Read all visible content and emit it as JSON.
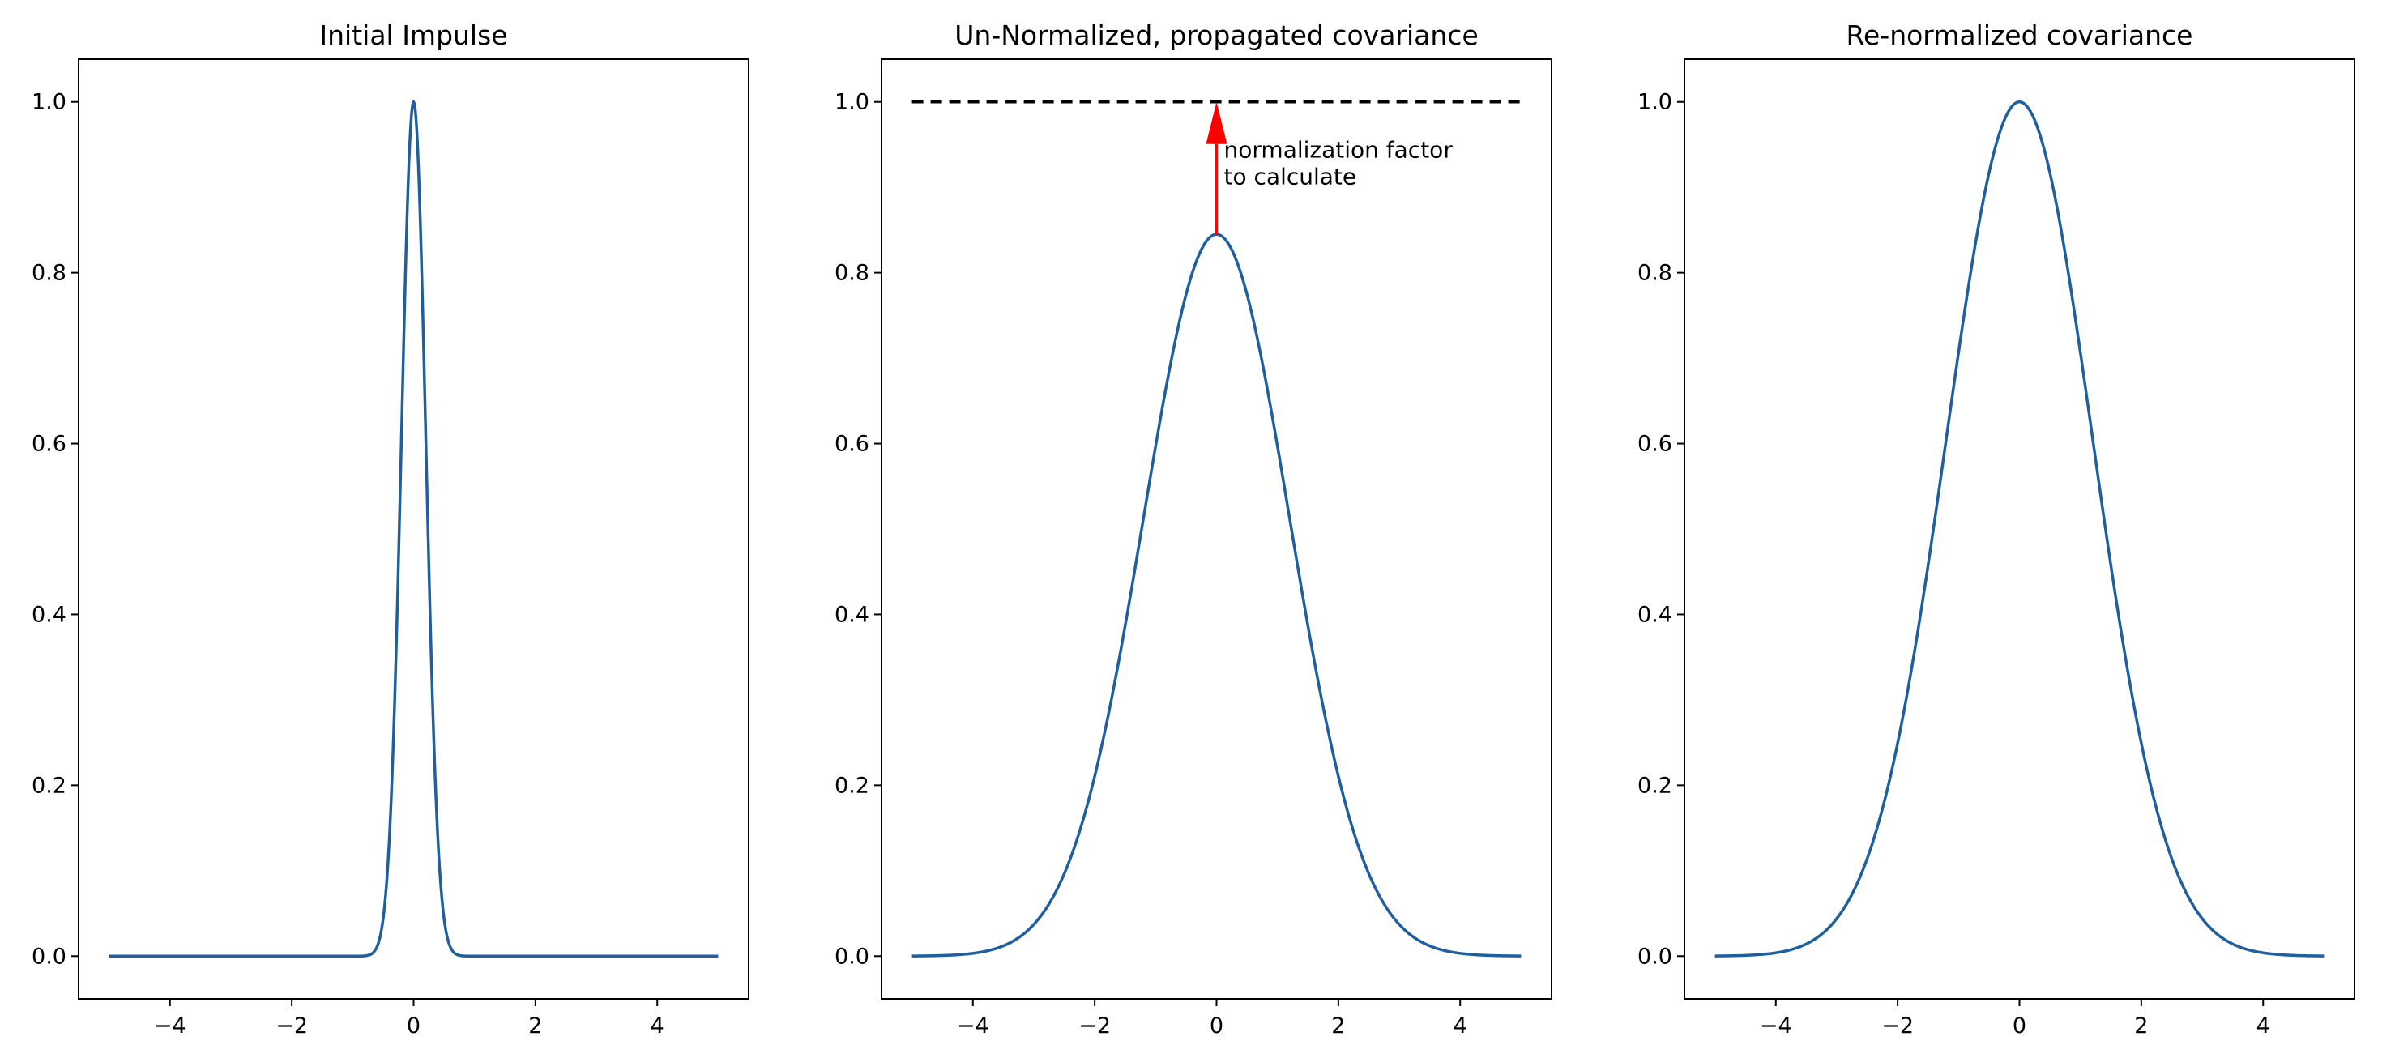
{
  "figure": {
    "description_colors": {
      "line": "#1f5fa0",
      "arrow": "#ff0000",
      "reference": "#000000",
      "background": "#ffffff"
    }
  },
  "chart_data": [
    {
      "type": "line",
      "title": "Initial Impulse",
      "xlabel": "",
      "ylabel": "",
      "xlim": [
        -5.5,
        5.5
      ],
      "ylim": [
        -0.05,
        1.05
      ],
      "xticks": [
        -4,
        -2,
        0,
        2,
        4
      ],
      "xtick_labels": [
        "−4",
        "−2",
        "0",
        "2",
        "4"
      ],
      "yticks": [
        0.0,
        0.2,
        0.4,
        0.6,
        0.8,
        1.0
      ],
      "ytick_labels": [
        "0.0",
        "0.2",
        "0.4",
        "0.6",
        "0.8",
        "1.0"
      ],
      "series": [
        {
          "name": "impulse",
          "function": "gaussian",
          "x_range": [
            -5,
            5
          ],
          "amplitude": 1.0,
          "sigma": 0.2,
          "color": "#1f5fa0"
        }
      ]
    },
    {
      "type": "line",
      "title": "Un-Normalized, propagated covariance",
      "xlabel": "",
      "ylabel": "",
      "xlim": [
        -5.5,
        5.5
      ],
      "ylim": [
        -0.05,
        1.05
      ],
      "xticks": [
        -4,
        -2,
        0,
        2,
        4
      ],
      "xtick_labels": [
        "−4",
        "−2",
        "0",
        "2",
        "4"
      ],
      "yticks": [
        0.0,
        0.2,
        0.4,
        0.6,
        0.8,
        1.0
      ],
      "ytick_labels": [
        "0.0",
        "0.2",
        "0.4",
        "0.6",
        "0.8",
        "1.0"
      ],
      "series": [
        {
          "name": "propagated",
          "function": "gaussian",
          "x_range": [
            -5,
            5
          ],
          "amplitude": 0.845,
          "sigma": 1.2,
          "color": "#1f5fa0"
        }
      ],
      "reference_line": {
        "y": 1.0,
        "x_range": [
          -5,
          5
        ],
        "style": "dashed",
        "color": "#000000"
      },
      "annotation": {
        "arrow": {
          "x": 0,
          "from_y": 0.845,
          "to_y": 1.0,
          "color": "#ff0000"
        },
        "text_lines": [
          "normalization factor",
          "to calculate"
        ],
        "text_x": 0.12,
        "text_y": 0.935
      }
    },
    {
      "type": "line",
      "title": "Re-normalized covariance",
      "xlabel": "",
      "ylabel": "",
      "xlim": [
        -5.5,
        5.5
      ],
      "ylim": [
        -0.05,
        1.05
      ],
      "xticks": [
        -4,
        -2,
        0,
        2,
        4
      ],
      "xtick_labels": [
        "−4",
        "−2",
        "0",
        "2",
        "4"
      ],
      "yticks": [
        0.0,
        0.2,
        0.4,
        0.6,
        0.8,
        1.0
      ],
      "ytick_labels": [
        "0.0",
        "0.2",
        "0.4",
        "0.6",
        "0.8",
        "1.0"
      ],
      "series": [
        {
          "name": "renormalized",
          "function": "gaussian",
          "x_range": [
            -5,
            5
          ],
          "amplitude": 1.0,
          "sigma": 1.2,
          "color": "#1f5fa0"
        }
      ]
    }
  ]
}
